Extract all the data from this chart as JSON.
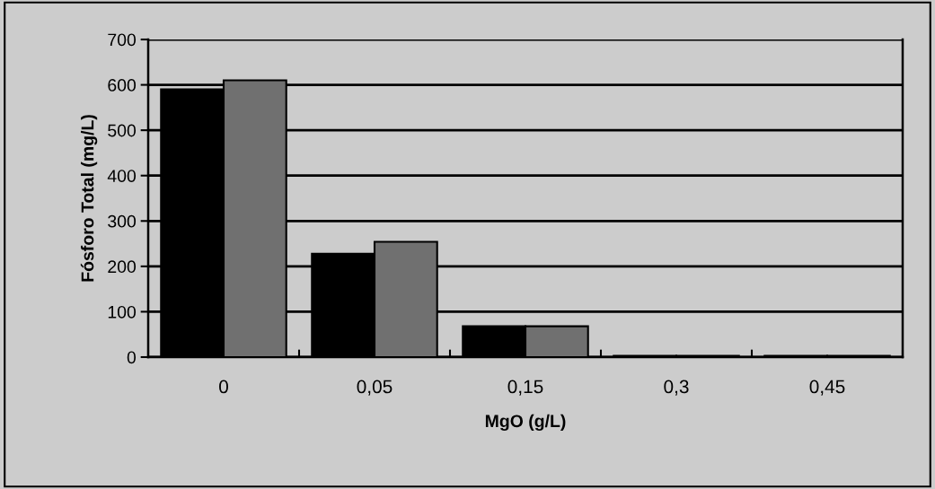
{
  "chart_data": {
    "type": "bar",
    "xlabel": "MgO (g/L)",
    "ylabel": "Fósforo Total (mg/L)",
    "categories": [
      "0",
      "0,05",
      "0,15",
      "0,3",
      "0,45"
    ],
    "series": [
      {
        "color": "#000000",
        "values": [
          590,
          228,
          68,
          3,
          3
        ]
      },
      {
        "color": "#707070",
        "values": [
          610,
          254,
          68,
          3,
          3
        ]
      }
    ],
    "ylim": [
      0,
      700
    ],
    "yticks": [
      0,
      100,
      200,
      300,
      400,
      500,
      600,
      700
    ],
    "grid": "y"
  }
}
